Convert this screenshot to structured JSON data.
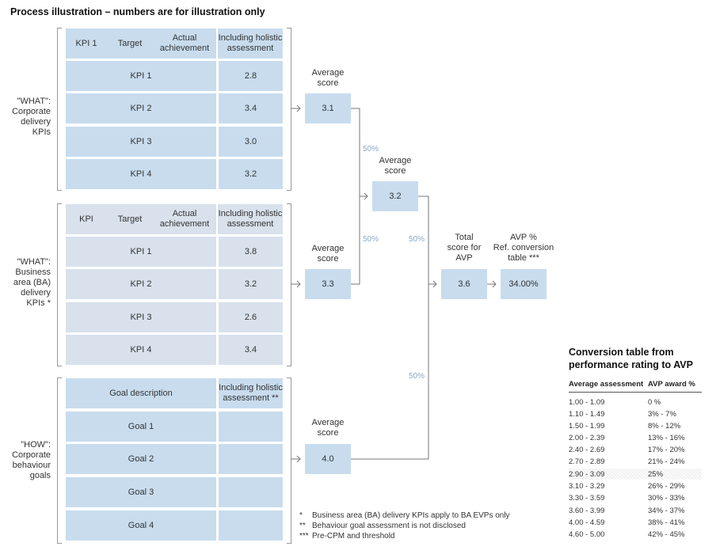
{
  "title": "Process illustration – numbers are for illustration only",
  "corporate": {
    "side_label": "\"WHAT\":\nCorporate\ndelivery\nKPIs",
    "headers": [
      "KPI 1",
      "Target",
      "Actual\nachievement",
      "Including holistic\nassessment"
    ],
    "rows": [
      {
        "name": "KPI 1",
        "value": "2.8"
      },
      {
        "name": "KPI 2",
        "value": "3.4"
      },
      {
        "name": "KPI 3",
        "value": "3.0"
      },
      {
        "name": "KPI 4",
        "value": "3.2"
      }
    ],
    "avg_label": "Average\nscore",
    "avg_value": "3.1"
  },
  "ba": {
    "side_label": "\"WHAT\":\nBusiness\narea (BA)\ndelivery\nKPIs *",
    "headers": [
      "KPI",
      "Target",
      "Actual\nachievement",
      "Including holistic\nassessment"
    ],
    "rows": [
      {
        "name": "KPI 1",
        "value": "3.8"
      },
      {
        "name": "KPI 2",
        "value": "3.2"
      },
      {
        "name": "KPI 3",
        "value": "2.6"
      },
      {
        "name": "KPI 4",
        "value": "3.4"
      }
    ],
    "avg_label": "Average\nscore",
    "avg_value": "3.3"
  },
  "how": {
    "side_label": "\"HOW\":\nCorporate\nbehaviour\ngoals",
    "headers": [
      "Goal description",
      "Including holistic\nassessment **"
    ],
    "rows": [
      {
        "name": "Goal 1",
        "value": ""
      },
      {
        "name": "Goal 2",
        "value": ""
      },
      {
        "name": "Goal 3",
        "value": ""
      },
      {
        "name": "Goal 4",
        "value": ""
      }
    ],
    "avg_label": "Average\nscore",
    "avg_value": "4.0"
  },
  "combined": {
    "label": "Average\nscore",
    "value": "3.2"
  },
  "total": {
    "label": "Total\nscore for\nAVP",
    "value": "3.6"
  },
  "avp": {
    "label": "AVP %\nRef. conversion\ntable ***",
    "value": "34.00%"
  },
  "weights": {
    "w1": "50%",
    "w2": "50%",
    "w3": "50%",
    "w4": "50%"
  },
  "conversion": {
    "title": "Conversion table from\nperformance rating to AVP",
    "col1": "Average assessment",
    "col2": "AVP award %",
    "rows": [
      [
        "1.00 - 1.09",
        "0 %"
      ],
      [
        "1.10 - 1.49",
        "3% - 7%"
      ],
      [
        "1.50 - 1.99",
        "8% - 12%"
      ],
      [
        "2.00 - 2.39",
        "13% - 16%"
      ],
      [
        "2.40 - 2.69",
        "17% - 20%"
      ],
      [
        "2.70 - 2.89",
        "21% - 24%"
      ],
      [
        "2.90 - 3.09",
        "25%"
      ],
      [
        "3.10 - 3.29",
        "26% - 29%"
      ],
      [
        "3.30 - 3.59",
        "30% - 33%"
      ],
      [
        "3.60 - 3.99",
        "34% - 37%"
      ],
      [
        "4.00 - 4.59",
        "38% - 41%"
      ],
      [
        "4.60 - 5.00",
        "42% - 45%"
      ]
    ]
  },
  "footnotes": [
    {
      "mark": "*",
      "text": "Business area (BA) delivery KPIs apply to BA EVPs only"
    },
    {
      "mark": "**",
      "text": "Behaviour goal assessment is not disclosed"
    },
    {
      "mark": "***",
      "text": "Pre-CPM and threshold"
    }
  ],
  "colors": {
    "box_blue": "#c8dcee",
    "box_grey": "#d8e1ec",
    "weight_text": "#8aa8c4"
  }
}
